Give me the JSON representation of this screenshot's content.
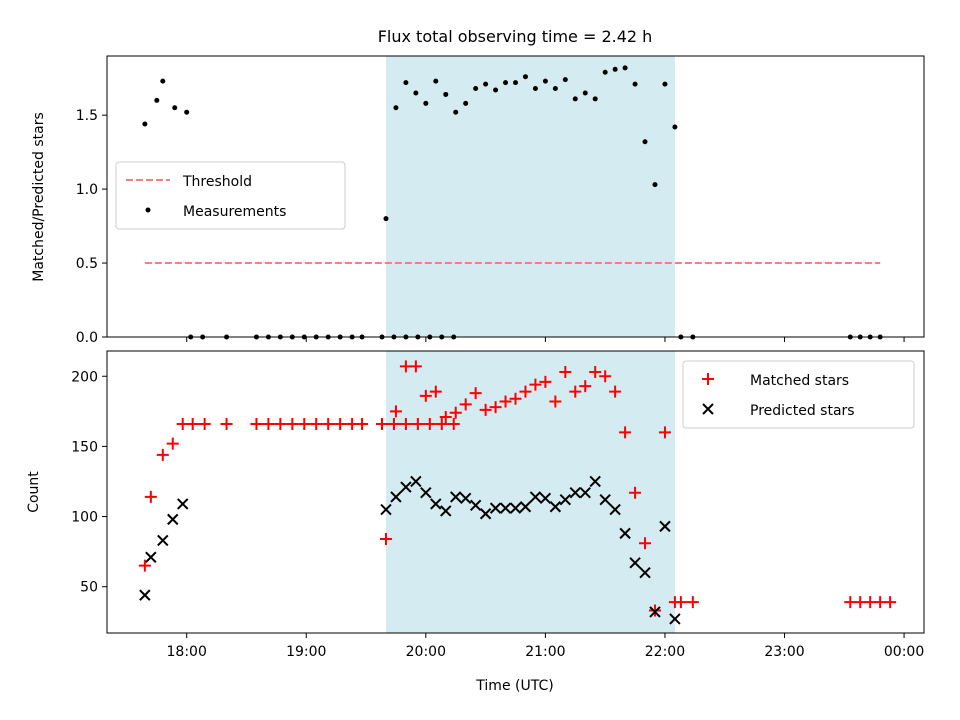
{
  "title": "Flux total observing time = 2.42 h",
  "chart_data": [
    {
      "type": "scatter",
      "panel": "top",
      "ylabel": "Matched/Predicted stars",
      "xlim": [
        "17:20",
        "00:10"
      ],
      "ylim": [
        0,
        1.9
      ],
      "yticks": [
        0.0,
        0.5,
        1.0,
        1.5
      ],
      "ytick_labels": [
        "0.0",
        "0.5",
        "1.0",
        "1.5"
      ],
      "legend_placement": "center-left",
      "shaded_span": {
        "x_start": "19:40",
        "x_end": "22:05",
        "color": "#d4ebf1"
      },
      "threshold": {
        "name": "Threshold",
        "value": 0.5,
        "x_start": "17:39",
        "x_end": "23:48",
        "color": "#f28080"
      },
      "series": [
        {
          "name": "Measurements",
          "color": "#000000",
          "marker": "dot",
          "points": [
            [
              "17:39",
              1.44
            ],
            [
              "17:45",
              1.6
            ],
            [
              "17:48",
              1.73
            ],
            [
              "17:54",
              1.55
            ],
            [
              "18:00",
              1.52
            ],
            [
              "18:02",
              0
            ],
            [
              "18:08",
              0
            ],
            [
              "18:20",
              0
            ],
            [
              "18:35",
              0
            ],
            [
              "18:41",
              0
            ],
            [
              "18:47",
              0
            ],
            [
              "18:53",
              0
            ],
            [
              "18:59",
              0
            ],
            [
              "19:05",
              0
            ],
            [
              "19:11",
              0
            ],
            [
              "19:17",
              0
            ],
            [
              "19:23",
              0
            ],
            [
              "19:28",
              0
            ],
            [
              "19:38",
              0
            ],
            [
              "19:44",
              0
            ],
            [
              "19:50",
              0
            ],
            [
              "19:56",
              0
            ],
            [
              "20:02",
              0
            ],
            [
              "20:08",
              0
            ],
            [
              "20:14",
              0
            ],
            [
              "19:40",
              0.8
            ],
            [
              "19:45",
              1.55
            ],
            [
              "19:50",
              1.72
            ],
            [
              "19:55",
              1.65
            ],
            [
              "20:00",
              1.58
            ],
            [
              "20:05",
              1.73
            ],
            [
              "20:10",
              1.64
            ],
            [
              "20:15",
              1.52
            ],
            [
              "20:20",
              1.58
            ],
            [
              "20:25",
              1.68
            ],
            [
              "20:30",
              1.71
            ],
            [
              "20:35",
              1.67
            ],
            [
              "20:40",
              1.72
            ],
            [
              "20:45",
              1.72
            ],
            [
              "20:50",
              1.76
            ],
            [
              "20:55",
              1.68
            ],
            [
              "21:00",
              1.73
            ],
            [
              "21:05",
              1.68
            ],
            [
              "21:10",
              1.74
            ],
            [
              "21:15",
              1.61
            ],
            [
              "21:20",
              1.65
            ],
            [
              "21:25",
              1.61
            ],
            [
              "21:30",
              1.79
            ],
            [
              "21:35",
              1.81
            ],
            [
              "21:40",
              1.82
            ],
            [
              "21:45",
              1.71
            ],
            [
              "21:50",
              1.32
            ],
            [
              "21:55",
              1.03
            ],
            [
              "22:00",
              1.71
            ],
            [
              "22:05",
              1.42
            ],
            [
              "22:08",
              0
            ],
            [
              "22:14",
              0
            ],
            [
              "23:33",
              0
            ],
            [
              "23:38",
              0
            ],
            [
              "23:43",
              0
            ],
            [
              "23:48",
              0
            ]
          ]
        }
      ]
    },
    {
      "type": "scatter",
      "panel": "bottom",
      "xlabel": "Time (UTC)",
      "ylabel": "Count",
      "xlim": [
        "17:20",
        "00:10"
      ],
      "xtick_labels": [
        "18:00",
        "19:00",
        "20:00",
        "21:00",
        "22:00",
        "23:00",
        "00:00"
      ],
      "ylim": [
        17,
        218
      ],
      "yticks": [
        50,
        100,
        150,
        200
      ],
      "ytick_labels": [
        "50",
        "100",
        "150",
        "200"
      ],
      "legend_placement": "top-right",
      "shaded_span": {
        "x_start": "19:40",
        "x_end": "22:05",
        "color": "#d4ebf1"
      },
      "series": [
        {
          "name": "Matched stars",
          "color": "#ff0000",
          "marker": "plus",
          "points": [
            [
              "17:39",
              65
            ],
            [
              "17:42",
              114
            ],
            [
              "17:48",
              144
            ],
            [
              "17:53",
              152
            ],
            [
              "17:58",
              166
            ],
            [
              "18:03",
              166
            ],
            [
              "18:09",
              166
            ],
            [
              "18:20",
              166
            ],
            [
              "18:35",
              166
            ],
            [
              "18:41",
              166
            ],
            [
              "18:47",
              166
            ],
            [
              "18:53",
              166
            ],
            [
              "18:59",
              166
            ],
            [
              "19:05",
              166
            ],
            [
              "19:11",
              166
            ],
            [
              "19:17",
              166
            ],
            [
              "19:23",
              166
            ],
            [
              "19:28",
              166
            ],
            [
              "19:38",
              166
            ],
            [
              "19:44",
              166
            ],
            [
              "19:50",
              166
            ],
            [
              "19:56",
              166
            ],
            [
              "20:02",
              166
            ],
            [
              "20:08",
              166
            ],
            [
              "20:14",
              166
            ],
            [
              "19:40",
              84
            ],
            [
              "19:45",
              175
            ],
            [
              "19:50",
              207
            ],
            [
              "19:55",
              207
            ],
            [
              "20:00",
              186
            ],
            [
              "20:05",
              189
            ],
            [
              "20:10",
              171
            ],
            [
              "20:15",
              174
            ],
            [
              "20:20",
              180
            ],
            [
              "20:25",
              188
            ],
            [
              "20:30",
              176
            ],
            [
              "20:35",
              178
            ],
            [
              "20:40",
              182
            ],
            [
              "20:45",
              184
            ],
            [
              "20:50",
              189
            ],
            [
              "20:55",
              194
            ],
            [
              "21:00",
              196
            ],
            [
              "21:05",
              182
            ],
            [
              "21:10",
              203
            ],
            [
              "21:15",
              189
            ],
            [
              "21:20",
              193
            ],
            [
              "21:25",
              203
            ],
            [
              "21:30",
              200
            ],
            [
              "21:35",
              189
            ],
            [
              "21:40",
              160
            ],
            [
              "21:45",
              117
            ],
            [
              "21:50",
              81
            ],
            [
              "21:55",
              33
            ],
            [
              "22:00",
              160
            ],
            [
              "22:05",
              39
            ],
            [
              "22:08",
              39
            ],
            [
              "22:14",
              39
            ],
            [
              "23:33",
              39
            ],
            [
              "23:38",
              39
            ],
            [
              "23:43",
              39
            ],
            [
              "23:48",
              39
            ],
            [
              "23:53",
              39
            ]
          ]
        },
        {
          "name": "Predicted stars",
          "color": "#000000",
          "marker": "x",
          "points": [
            [
              "17:39",
              44
            ],
            [
              "17:42",
              71
            ],
            [
              "17:48",
              83
            ],
            [
              "17:53",
              98
            ],
            [
              "17:58",
              109
            ],
            [
              "19:40",
              105
            ],
            [
              "19:45",
              114
            ],
            [
              "19:50",
              121
            ],
            [
              "19:55",
              125
            ],
            [
              "20:00",
              117
            ],
            [
              "20:05",
              109
            ],
            [
              "20:10",
              104
            ],
            [
              "20:15",
              114
            ],
            [
              "20:20",
              113
            ],
            [
              "20:25",
              108
            ],
            [
              "20:30",
              102
            ],
            [
              "20:35",
              106
            ],
            [
              "20:40",
              106
            ],
            [
              "20:45",
              106
            ],
            [
              "20:50",
              107
            ],
            [
              "20:55",
              114
            ],
            [
              "21:00",
              113
            ],
            [
              "21:05",
              107
            ],
            [
              "21:10",
              112
            ],
            [
              "21:15",
              117
            ],
            [
              "21:20",
              117
            ],
            [
              "21:25",
              125
            ],
            [
              "21:30",
              112
            ],
            [
              "21:35",
              105
            ],
            [
              "21:40",
              88
            ],
            [
              "21:45",
              67
            ],
            [
              "21:50",
              60
            ],
            [
              "21:55",
              32
            ],
            [
              "22:00",
              93
            ],
            [
              "22:05",
              27
            ]
          ]
        }
      ]
    }
  ]
}
